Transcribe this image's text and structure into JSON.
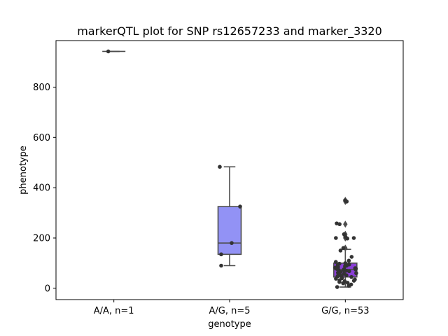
{
  "chart_data": {
    "type": "box",
    "title": "markerQTL plot for SNP rs12657233 and marker_3320",
    "xlabel": "genotype",
    "ylabel": "phenotype",
    "categories": [
      "A/A, n=1",
      "A/G, n=5",
      "G/G, n=53"
    ],
    "ylim": [
      -45,
      985
    ],
    "yticks": [
      0,
      200,
      400,
      600,
      800
    ],
    "grid": false,
    "boxes": [
      {
        "category": "A/A, n=1",
        "q1": 942,
        "median": 942,
        "q3": 942,
        "whisker_low": 942,
        "whisker_high": 942,
        "outliers": [],
        "color": "#9b9bf5"
      },
      {
        "category": "A/G, n=5",
        "q1": 135,
        "median": 180,
        "q3": 325,
        "whisker_low": 90,
        "whisker_high": 483,
        "outliers": [],
        "color": "#9292f5"
      },
      {
        "category": "G/G, n=53",
        "q1": 45,
        "median": 75,
        "q3": 100,
        "whisker_low": 5,
        "whisker_high": 155,
        "outliers": [
          160,
          200,
          205,
          215,
          255,
          345,
          350
        ],
        "color": "#8a3fd6"
      }
    ],
    "points": [
      {
        "category": "A/A, n=1",
        "values": [
          942
        ]
      },
      {
        "category": "A/G, n=5",
        "values": [
          483,
          325,
          180,
          135,
          90
        ]
      },
      {
        "category": "G/G, n=53",
        "values": [
          350,
          345,
          258,
          255,
          215,
          205,
          200,
          200,
          198,
          160,
          150,
          125,
          110,
          105,
          100,
          98,
          95,
          92,
          90,
          88,
          85,
          82,
          80,
          78,
          77,
          76,
          75,
          74,
          72,
          70,
          68,
          65,
          62,
          60,
          58,
          55,
          52,
          50,
          48,
          45,
          42,
          40,
          38,
          35,
          32,
          30,
          28,
          25,
          22,
          20,
          15,
          10,
          5
        ]
      }
    ]
  }
}
